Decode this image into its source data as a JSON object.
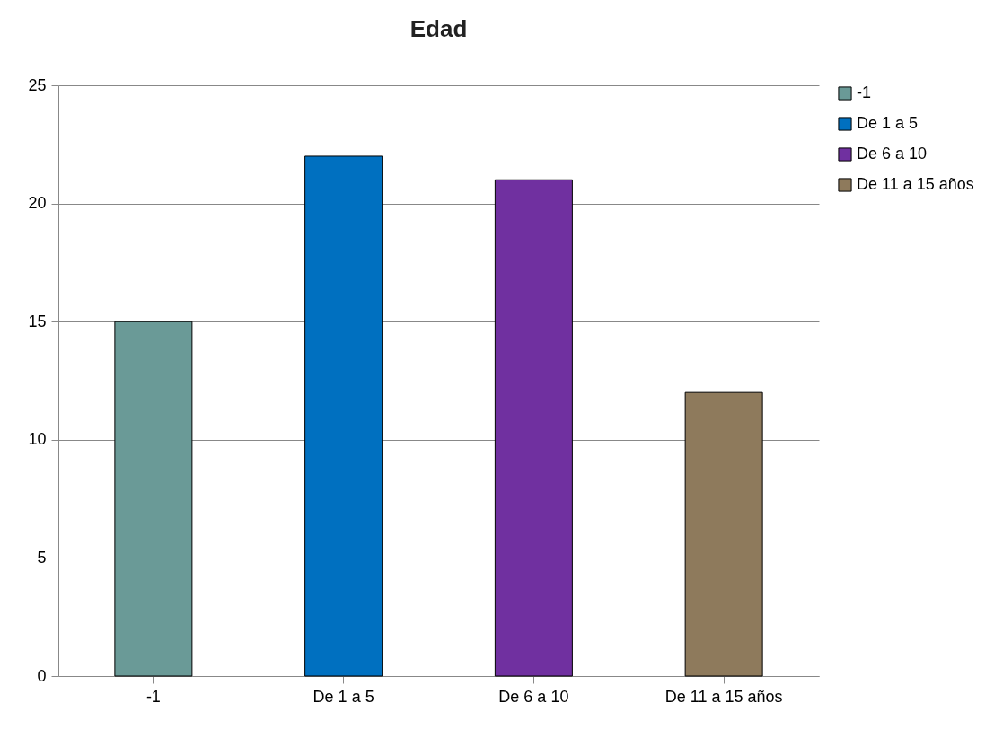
{
  "chart_data": {
    "type": "bar",
    "title": "Edad",
    "categories": [
      "-1",
      "De 1 a 5",
      "De 6 a 10",
      "De 11 a 15 años"
    ],
    "series": [
      {
        "name": "-1",
        "color": "#6a9a97",
        "values": [
          15,
          null,
          null,
          null
        ]
      },
      {
        "name": "De 1 a 5",
        "color": "#0070c0",
        "values": [
          null,
          22,
          null,
          null
        ]
      },
      {
        "name": "De 6 a 10",
        "color": "#7030a0",
        "values": [
          null,
          null,
          21,
          null
        ]
      },
      {
        "name": "De 11 a 15 años",
        "color": "#8e7a5c",
        "values": [
          null,
          null,
          null,
          12
        ]
      }
    ],
    "stacked": true,
    "ylim": [
      0,
      25
    ],
    "yticks": [
      0,
      5,
      10,
      15,
      20,
      25
    ],
    "grid": "y",
    "legend": "right"
  }
}
